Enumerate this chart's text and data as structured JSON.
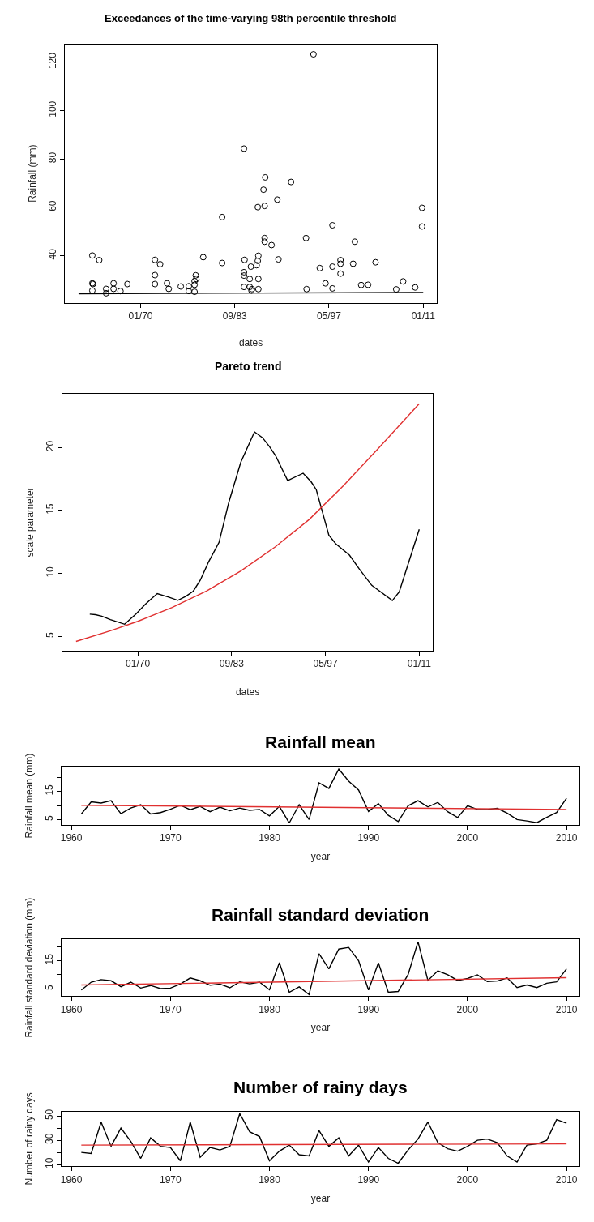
{
  "chart_data": [
    {
      "type": "scatter",
      "title": "Exceedances of the time-varying 98th percentile threshold",
      "xlabel": "dates",
      "ylabel": "Rainfall (mm)",
      "xlim": [
        "1959-01",
        "2013-01"
      ],
      "xticks": [
        {
          "value": "1970-01",
          "label": "01/70"
        },
        {
          "value": "1983-09",
          "label": "09/83"
        },
        {
          "value": "1997-05",
          "label": "05/97"
        },
        {
          "value": "2011-01",
          "label": "01/11"
        }
      ],
      "ylim": [
        20.6,
        127.4
      ],
      "yticks": [
        40,
        60,
        80,
        100,
        120
      ],
      "series": [
        {
          "type": "scatter",
          "marker": "circle",
          "color": "#000000",
          "x": [
            "1963-01",
            "1963-01",
            "1963-02",
            "1963-01",
            "1964-01",
            "1965-01",
            "1965-01",
            "1966-02",
            "1966-02",
            "1967-02",
            "1968-02",
            "1972-02",
            "1972-02",
            "1972-02",
            "1972-11",
            "1973-11",
            "1974-02",
            "1975-11",
            "1977-01",
            "1977-01",
            "1977-11",
            "1977-11",
            "1977-11",
            "1978-02",
            "1978-01",
            "1979-02",
            "1981-11",
            "1981-11",
            "1985-01",
            "1985-02",
            "1985-01",
            "1985-01",
            "1985-01",
            "1985-11",
            "1985-11",
            "1986-01",
            "1986-02",
            "1986-03",
            "1986-11",
            "1987-01",
            "1987-02",
            "1987-02",
            "1987-02",
            "1987-01",
            "1988-01",
            "1987-11",
            "1988-02",
            "1988-01",
            "1988-01",
            "1989-01",
            "1989-11",
            "1990-01",
            "1991-11",
            "1994-01",
            "1994-02",
            "1995-02",
            "1996-01",
            "1996-11",
            "1997-11",
            "1997-11",
            "1997-11",
            "1999-01",
            "1999-01",
            "1999-01",
            "2001-02",
            "2000-11",
            "2002-01",
            "2003-01",
            "2004-02",
            "2007-02",
            "2008-02",
            "2009-11",
            "2010-11",
            "2010-11"
          ],
          "values": [
            40.1,
            28.6,
            28.3,
            25.6,
            38.2,
            26.3,
            24.5,
            28.6,
            26.3,
            25.4,
            28.3,
            38.3,
            32.0,
            28.3,
            36.5,
            28.6,
            26.3,
            27.3,
            27.4,
            25.4,
            25.1,
            28.0,
            29.5,
            30.4,
            31.9,
            39.4,
            56.0,
            37.0,
            84.3,
            38.3,
            33.2,
            31.8,
            27.1,
            30.4,
            27.1,
            35.5,
            25.6,
            26.2,
            36.1,
            37.9,
            30.4,
            26.2,
            40.0,
            60.1,
            60.6,
            67.3,
            72.4,
            47.3,
            45.8,
            44.4,
            63.2,
            38.5,
            70.5,
            47.3,
            26.2,
            123.3,
            34.9,
            28.6,
            52.6,
            35.5,
            26.5,
            38.2,
            36.7,
            32.6,
            45.8,
            36.7,
            27.9,
            28.0,
            37.3,
            26.1,
            29.4,
            26.9,
            59.8,
            52.1
          ]
        },
        {
          "type": "line",
          "color": "#000000",
          "x": [
            "1961-01",
            "2011-01"
          ],
          "values": [
            24.3,
            24.8
          ]
        }
      ]
    },
    {
      "type": "line",
      "title": "Pareto trend",
      "xlabel": "dates",
      "ylabel": "scale parameter",
      "xlim": [
        "1959-01",
        "2013-01"
      ],
      "xticks": [
        {
          "value": "1970-01",
          "label": "01/70"
        },
        {
          "value": "1983-09",
          "label": "09/83"
        },
        {
          "value": "1997-05",
          "label": "05/97"
        },
        {
          "value": "2011-01",
          "label": "01/11"
        }
      ],
      "ylim": [
        3.88,
        24.26
      ],
      "yticks": [
        5,
        10,
        15,
        20
      ],
      "series": [
        {
          "color": "#000000",
          "x": [
            "1963-01",
            "1963-11",
            "1964-10",
            "1966-01",
            "1968-02",
            "1969-10",
            "1971-02",
            "1971-11",
            "1972-11",
            "1974-07",
            "1975-11",
            "1977-01",
            "1978-02",
            "1979-02",
            "1980-05",
            "1981-11",
            "1983-04",
            "1985-01",
            "1987-01",
            "1988-03",
            "1989-03",
            "1990-02",
            "1991-11",
            "1994-02",
            "1995-04",
            "1996-01",
            "1996-10",
            "1997-11",
            "1998-11",
            "2000-11",
            "2002-04",
            "2004-02",
            "2007-02",
            "2008-02",
            "2011-01"
          ],
          "values": [
            6.77,
            6.73,
            6.61,
            6.34,
            5.97,
            6.8,
            7.55,
            7.92,
            8.4,
            8.12,
            7.87,
            8.19,
            8.6,
            9.45,
            10.94,
            12.47,
            15.63,
            18.83,
            21.24,
            20.78,
            20.09,
            19.34,
            17.37,
            17.96,
            17.28,
            16.66,
            15.17,
            13.04,
            12.36,
            11.46,
            10.37,
            9.06,
            7.85,
            8.54,
            13.5
          ]
        },
        {
          "color": "#e03030",
          "x": [
            "1961-01",
            "1966-01",
            "1970-01",
            "1975-01",
            "1980-01",
            "1985-01",
            "1990-01",
            "1995-01",
            "2000-01",
            "2005-01",
            "2011-01"
          ],
          "values": [
            4.61,
            5.45,
            6.2,
            7.3,
            8.6,
            10.2,
            12.1,
            14.3,
            17.0,
            19.9,
            23.48
          ]
        }
      ]
    },
    {
      "type": "line",
      "title": "Rainfall mean",
      "xlabel": "year",
      "ylabel": "Rainfall mean (mm)",
      "xlim": [
        1959.0,
        2011.3
      ],
      "xticks": [
        1960,
        1970,
        1980,
        1990,
        2000,
        2010
      ],
      "ylim": [
        3.1,
        23.8
      ],
      "yticks": [
        5,
        {
          "value": 10,
          "label": null
        },
        15,
        {
          "value": 20,
          "label": null
        }
      ],
      "series": [
        {
          "color": "#000000",
          "x": [
            1961,
            1962,
            1963,
            1964,
            1965,
            1966,
            1967,
            1968,
            1969,
            1970,
            1971,
            1972,
            1973,
            1974,
            1975,
            1976,
            1977,
            1978,
            1979,
            1980,
            1981,
            1982,
            1983,
            1984,
            1985,
            1986,
            1987,
            1988,
            1989,
            1990,
            1991,
            1992,
            1993,
            1994,
            1995,
            1996,
            1997,
            1998,
            1999,
            2000,
            2001,
            2002,
            2003,
            2004,
            2005,
            2006,
            2007,
            2008,
            2009,
            2010
          ],
          "values": [
            7.0,
            11.3,
            10.9,
            11.7,
            7.1,
            9.1,
            10.3,
            7.0,
            7.5,
            8.7,
            10.1,
            8.5,
            9.7,
            7.8,
            9.4,
            8.1,
            9.1,
            8.3,
            8.6,
            6.3,
            9.7,
            3.8,
            10.3,
            5.0,
            18.1,
            16.1,
            23.0,
            18.7,
            15.5,
            7.9,
            10.7,
            6.5,
            4.3,
            9.9,
            11.7,
            9.5,
            11.1,
            7.8,
            5.7,
            9.9,
            8.6,
            8.6,
            9.0,
            7.3,
            5.0,
            4.5,
            3.9,
            5.8,
            7.5,
            12.6
          ]
        },
        {
          "color": "#e03030",
          "x": [
            1961,
            2010
          ],
          "values": [
            10.1,
            8.6
          ]
        }
      ]
    },
    {
      "type": "line",
      "title": "Rainfall standard deviation",
      "xlabel": "year",
      "ylabel": "Rainfall standard deviation (mm)",
      "xlim": [
        1959.0,
        2011.3
      ],
      "xticks": [
        1960,
        1970,
        1980,
        1990,
        2000,
        2010
      ],
      "ylim": [
        2.5,
        22.5
      ],
      "yticks": [
        5,
        {
          "value": 10,
          "label": null
        },
        15,
        {
          "value": 20,
          "label": null
        }
      ],
      "series": [
        {
          "color": "#000000",
          "x": [
            1961,
            1962,
            1963,
            1964,
            1965,
            1966,
            1967,
            1968,
            1969,
            1970,
            1971,
            1972,
            1973,
            1974,
            1975,
            1976,
            1977,
            1978,
            1979,
            1980,
            1981,
            1982,
            1983,
            1984,
            1985,
            1986,
            1987,
            1988,
            1989,
            1990,
            1991,
            1992,
            1993,
            1994,
            1995,
            1996,
            1997,
            1998,
            1999,
            2000,
            2001,
            2002,
            2003,
            2004,
            2005,
            2006,
            2007,
            2008,
            2009,
            2010
          ],
          "values": [
            4.6,
            7.4,
            8.3,
            7.9,
            5.8,
            7.4,
            5.3,
            6.2,
            5.1,
            5.3,
            6.7,
            8.9,
            7.9,
            6.3,
            6.7,
            5.4,
            7.5,
            6.8,
            7.4,
            4.7,
            14.3,
            3.8,
            5.7,
            3.0,
            17.5,
            12.1,
            19.1,
            19.7,
            15.0,
            4.6,
            14.2,
            3.8,
            4.1,
            10.1,
            21.7,
            8.0,
            11.4,
            10.0,
            8.0,
            8.7,
            10.0,
            7.6,
            7.8,
            8.9,
            5.5,
            6.4,
            5.5,
            7.0,
            7.5,
            12.1
          ]
        },
        {
          "color": "#e03030",
          "x": [
            1961,
            2010
          ],
          "values": [
            6.4,
            9.0
          ]
        }
      ]
    },
    {
      "type": "line",
      "title": "Number of rainy days",
      "xlabel": "year",
      "ylabel": "Number of rainy days",
      "xlim": [
        1959.0,
        2011.3
      ],
      "xticks": [
        1960,
        1970,
        1980,
        1990,
        2000,
        2010
      ],
      "ylim": [
        8.5,
        53.8
      ],
      "yticks": [
        10,
        {
          "value": 20,
          "label": null
        },
        30,
        {
          "value": 40,
          "label": null
        },
        50
      ],
      "series": [
        {
          "color": "#000000",
          "x": [
            1961,
            1962,
            1963,
            1964,
            1965,
            1966,
            1967,
            1968,
            1969,
            1970,
            1971,
            1972,
            1973,
            1974,
            1975,
            1976,
            1977,
            1978,
            1979,
            1980,
            1981,
            1982,
            1983,
            1984,
            1985,
            1986,
            1987,
            1988,
            1989,
            1990,
            1991,
            1992,
            1993,
            1994,
            1995,
            1996,
            1997,
            1998,
            1999,
            2000,
            2001,
            2002,
            2003,
            2004,
            2005,
            2006,
            2007,
            2008,
            2009,
            2010
          ],
          "values": [
            20,
            19,
            45,
            25,
            40,
            29,
            15,
            32,
            25,
            24,
            13,
            45,
            16,
            24,
            22,
            25,
            52,
            37,
            33,
            13,
            21,
            26,
            18,
            17,
            38,
            25,
            32,
            17,
            26,
            12,
            24,
            15,
            11,
            22,
            31,
            45,
            28,
            23,
            21,
            25,
            30,
            31,
            28,
            17,
            12,
            26,
            27,
            30,
            47,
            44
          ]
        },
        {
          "color": "#e03030",
          "x": [
            1961,
            2010
          ],
          "values": [
            26,
            27
          ]
        }
      ]
    }
  ]
}
